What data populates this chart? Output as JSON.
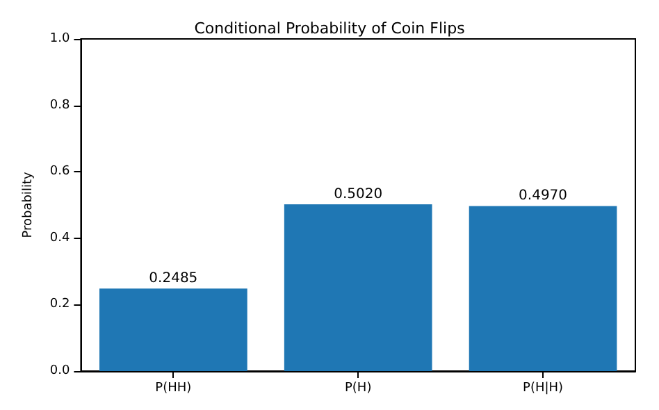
{
  "chart_data": {
    "type": "bar",
    "title": "Conditional Probability of Coin Flips",
    "ylabel": "Probability",
    "categories": [
      "P(HH)",
      "P(H)",
      "P(H|H)"
    ],
    "values": [
      0.2485,
      0.502,
      0.497
    ],
    "value_labels": [
      "0.2485",
      "0.5020",
      "0.4970"
    ],
    "color": "#1f77b4",
    "ylim": [
      0,
      1
    ],
    "yticks": [
      {
        "value": 0,
        "label": "0.0"
      },
      {
        "value": 0.2,
        "label": "0.2"
      },
      {
        "value": 0.4,
        "label": "0.4"
      },
      {
        "value": 0.6,
        "label": "0.6"
      },
      {
        "value": 0.8,
        "label": "0.8"
      },
      {
        "value": 1,
        "label": "1.0"
      }
    ],
    "grid": false
  }
}
